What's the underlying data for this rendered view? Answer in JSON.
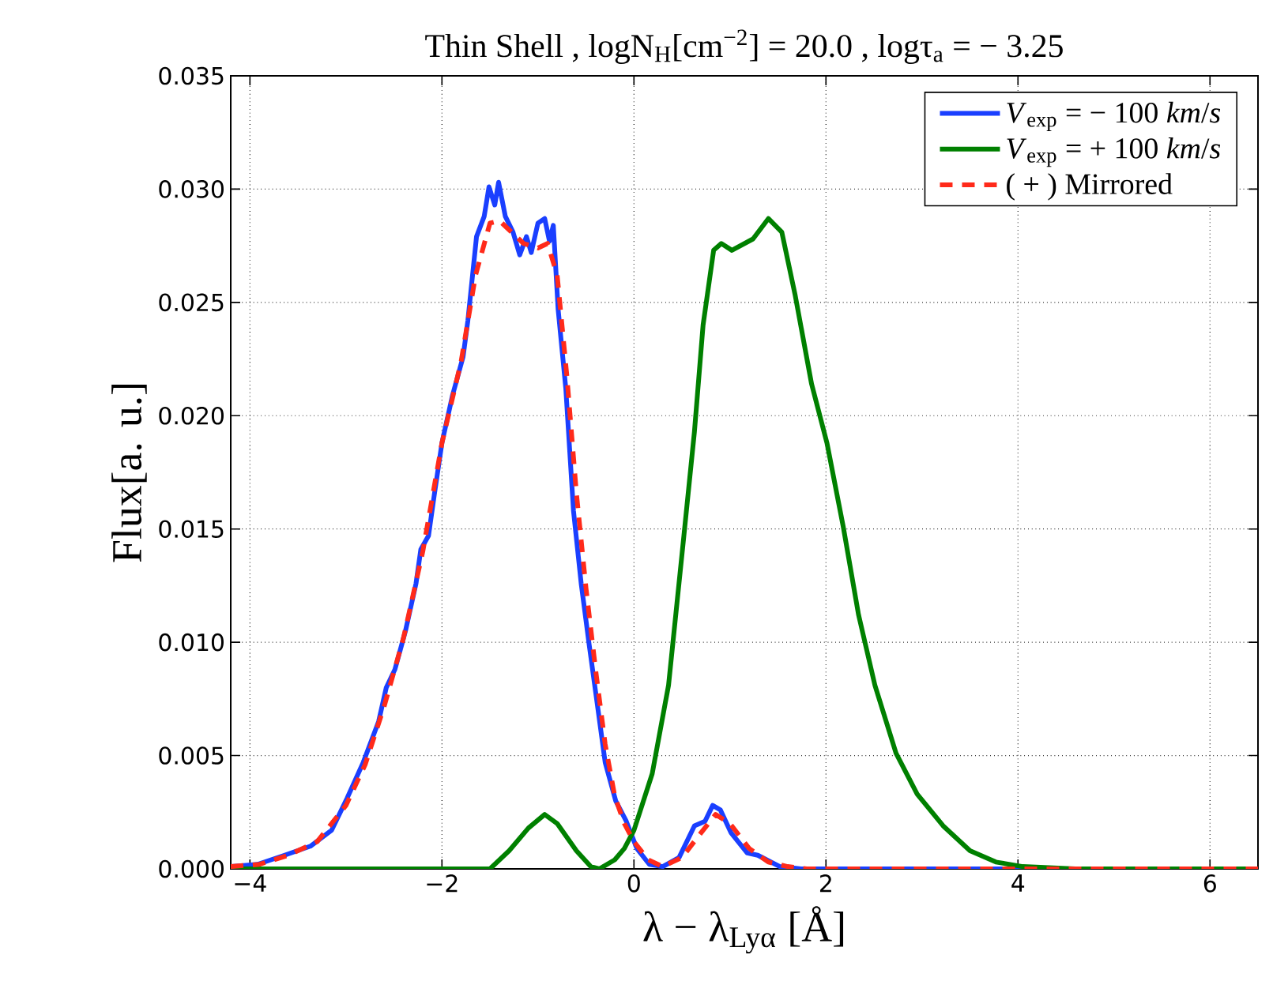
{
  "chart_data": {
    "type": "line",
    "title": "Thin Shell , logN$_{H}$[cm$^{−2}$] = 20.0 , logτ$_{a}$ = − 3.25",
    "xlabel": "λ − λ$_{Lyα}$ [Å]",
    "ylabel": "Flux[a. u.]",
    "xlim": [
      -4.2,
      6.5
    ],
    "ylim": [
      0,
      0.035
    ],
    "xticks": [
      {
        "value": -4,
        "label": "−4"
      },
      {
        "value": -2,
        "label": "−2"
      },
      0,
      2,
      4,
      6
    ],
    "yticks": [
      {
        "value": 0,
        "label": "0.000"
      },
      {
        "value": 0.005,
        "label": "0.005"
      },
      {
        "value": 0.01,
        "label": "0.010"
      },
      {
        "value": 0.015,
        "label": "0.015"
      },
      {
        "value": 0.02,
        "label": "0.020"
      },
      {
        "value": 0.025,
        "label": "0.025"
      },
      {
        "value": 0.03,
        "label": "0.030"
      },
      {
        "value": 0.035,
        "label": "0.035"
      }
    ],
    "grid": true,
    "legend": "top right",
    "series": [
      {
        "name": "*V*$_{exp}$ = − 100 *km*/*s*",
        "color": "#1a3fff",
        "line_style": "solid",
        "x": [
          -4.19,
          -3.92,
          -3.64,
          -3.37,
          -3.15,
          -2.99,
          -2.82,
          -2.66,
          -2.58,
          -2.49,
          -2.38,
          -2.27,
          -2.22,
          -2.14,
          -2.08,
          -2.0,
          -1.89,
          -1.78,
          -1.73,
          -1.64,
          -1.56,
          -1.51,
          -1.45,
          -1.41,
          -1.34,
          -1.26,
          -1.19,
          -1.12,
          -1.07,
          -1.0,
          -0.93,
          -0.88,
          -0.84,
          -0.79,
          -0.71,
          -0.63,
          -0.55,
          -0.47,
          -0.38,
          -0.3,
          -0.19,
          -0.08,
          0.03,
          0.16,
          0.3,
          0.47,
          0.63,
          0.74,
          0.82,
          0.9,
          1.01,
          1.18,
          1.29,
          1.52,
          1.74,
          6.5
        ],
        "values": [
          0.0001,
          0.0002,
          0.0006,
          0.001,
          0.0017,
          0.0031,
          0.0047,
          0.0065,
          0.008,
          0.0088,
          0.0105,
          0.0126,
          0.0141,
          0.0147,
          0.0165,
          0.0188,
          0.0209,
          0.0226,
          0.0242,
          0.0279,
          0.0288,
          0.0301,
          0.0293,
          0.0303,
          0.0288,
          0.0281,
          0.0271,
          0.0279,
          0.0272,
          0.0285,
          0.0287,
          0.0277,
          0.0284,
          0.0247,
          0.0212,
          0.0158,
          0.0126,
          0.01,
          0.0072,
          0.0047,
          0.003,
          0.0021,
          0.0009,
          0.0002,
          0.0001,
          0.0005,
          0.0019,
          0.0021,
          0.0028,
          0.0026,
          0.0016,
          0.0007,
          0.0006,
          0.0001,
          0.0,
          0.0
        ]
      },
      {
        "name": "*V*$_{exp}$ = + 100 *km*/*s*",
        "color": "#008000",
        "line_style": "solid",
        "x": [
          -4.2,
          -1.5,
          -1.3,
          -1.1,
          -0.93,
          -0.8,
          -0.6,
          -0.45,
          -0.36,
          -0.2,
          -0.1,
          0.0,
          0.19,
          0.36,
          0.52,
          0.63,
          0.72,
          0.83,
          0.91,
          1.02,
          1.24,
          1.4,
          1.54,
          1.68,
          1.85,
          2.01,
          2.18,
          2.34,
          2.51,
          2.73,
          2.95,
          3.22,
          3.5,
          3.77,
          4.05,
          4.6,
          6.5
        ],
        "values": [
          0.0,
          0.0,
          0.0008,
          0.0018,
          0.0024,
          0.002,
          0.0008,
          0.0001,
          0.0,
          0.0004,
          0.0009,
          0.0017,
          0.0042,
          0.0081,
          0.0147,
          0.0193,
          0.024,
          0.0273,
          0.0276,
          0.0273,
          0.0278,
          0.0287,
          0.0281,
          0.0253,
          0.0214,
          0.0188,
          0.0151,
          0.0112,
          0.0081,
          0.0051,
          0.0033,
          0.0019,
          0.0008,
          0.0003,
          0.0001,
          0.0,
          0.0
        ]
      },
      {
        "name": "( + ) Mirrored",
        "color": "#ff2a1a",
        "line_style": "dashed",
        "x": [
          -4.2,
          -3.9,
          -3.6,
          -3.3,
          -3.0,
          -2.8,
          -2.6,
          -2.4,
          -2.2,
          -2.0,
          -1.8,
          -1.65,
          -1.5,
          -1.4,
          -1.3,
          -1.15,
          -1.0,
          -0.9,
          -0.8,
          -0.7,
          -0.6,
          -0.5,
          -0.4,
          -0.3,
          -0.2,
          -0.1,
          0.0,
          0.15,
          0.3,
          0.5,
          0.7,
          0.85,
          1.0,
          1.2,
          1.4,
          1.6,
          1.8,
          6.5
        ],
        "values": [
          0.0001,
          0.0002,
          0.0006,
          0.0012,
          0.0028,
          0.0046,
          0.0072,
          0.0102,
          0.014,
          0.0188,
          0.0224,
          0.0262,
          0.0285,
          0.0286,
          0.0282,
          0.0276,
          0.0274,
          0.0276,
          0.0262,
          0.0218,
          0.0166,
          0.0124,
          0.0088,
          0.0055,
          0.0032,
          0.002,
          0.0012,
          0.0004,
          0.0001,
          0.0005,
          0.0016,
          0.0024,
          0.002,
          0.0009,
          0.0003,
          0.0001,
          0.0,
          0.0
        ]
      }
    ]
  }
}
